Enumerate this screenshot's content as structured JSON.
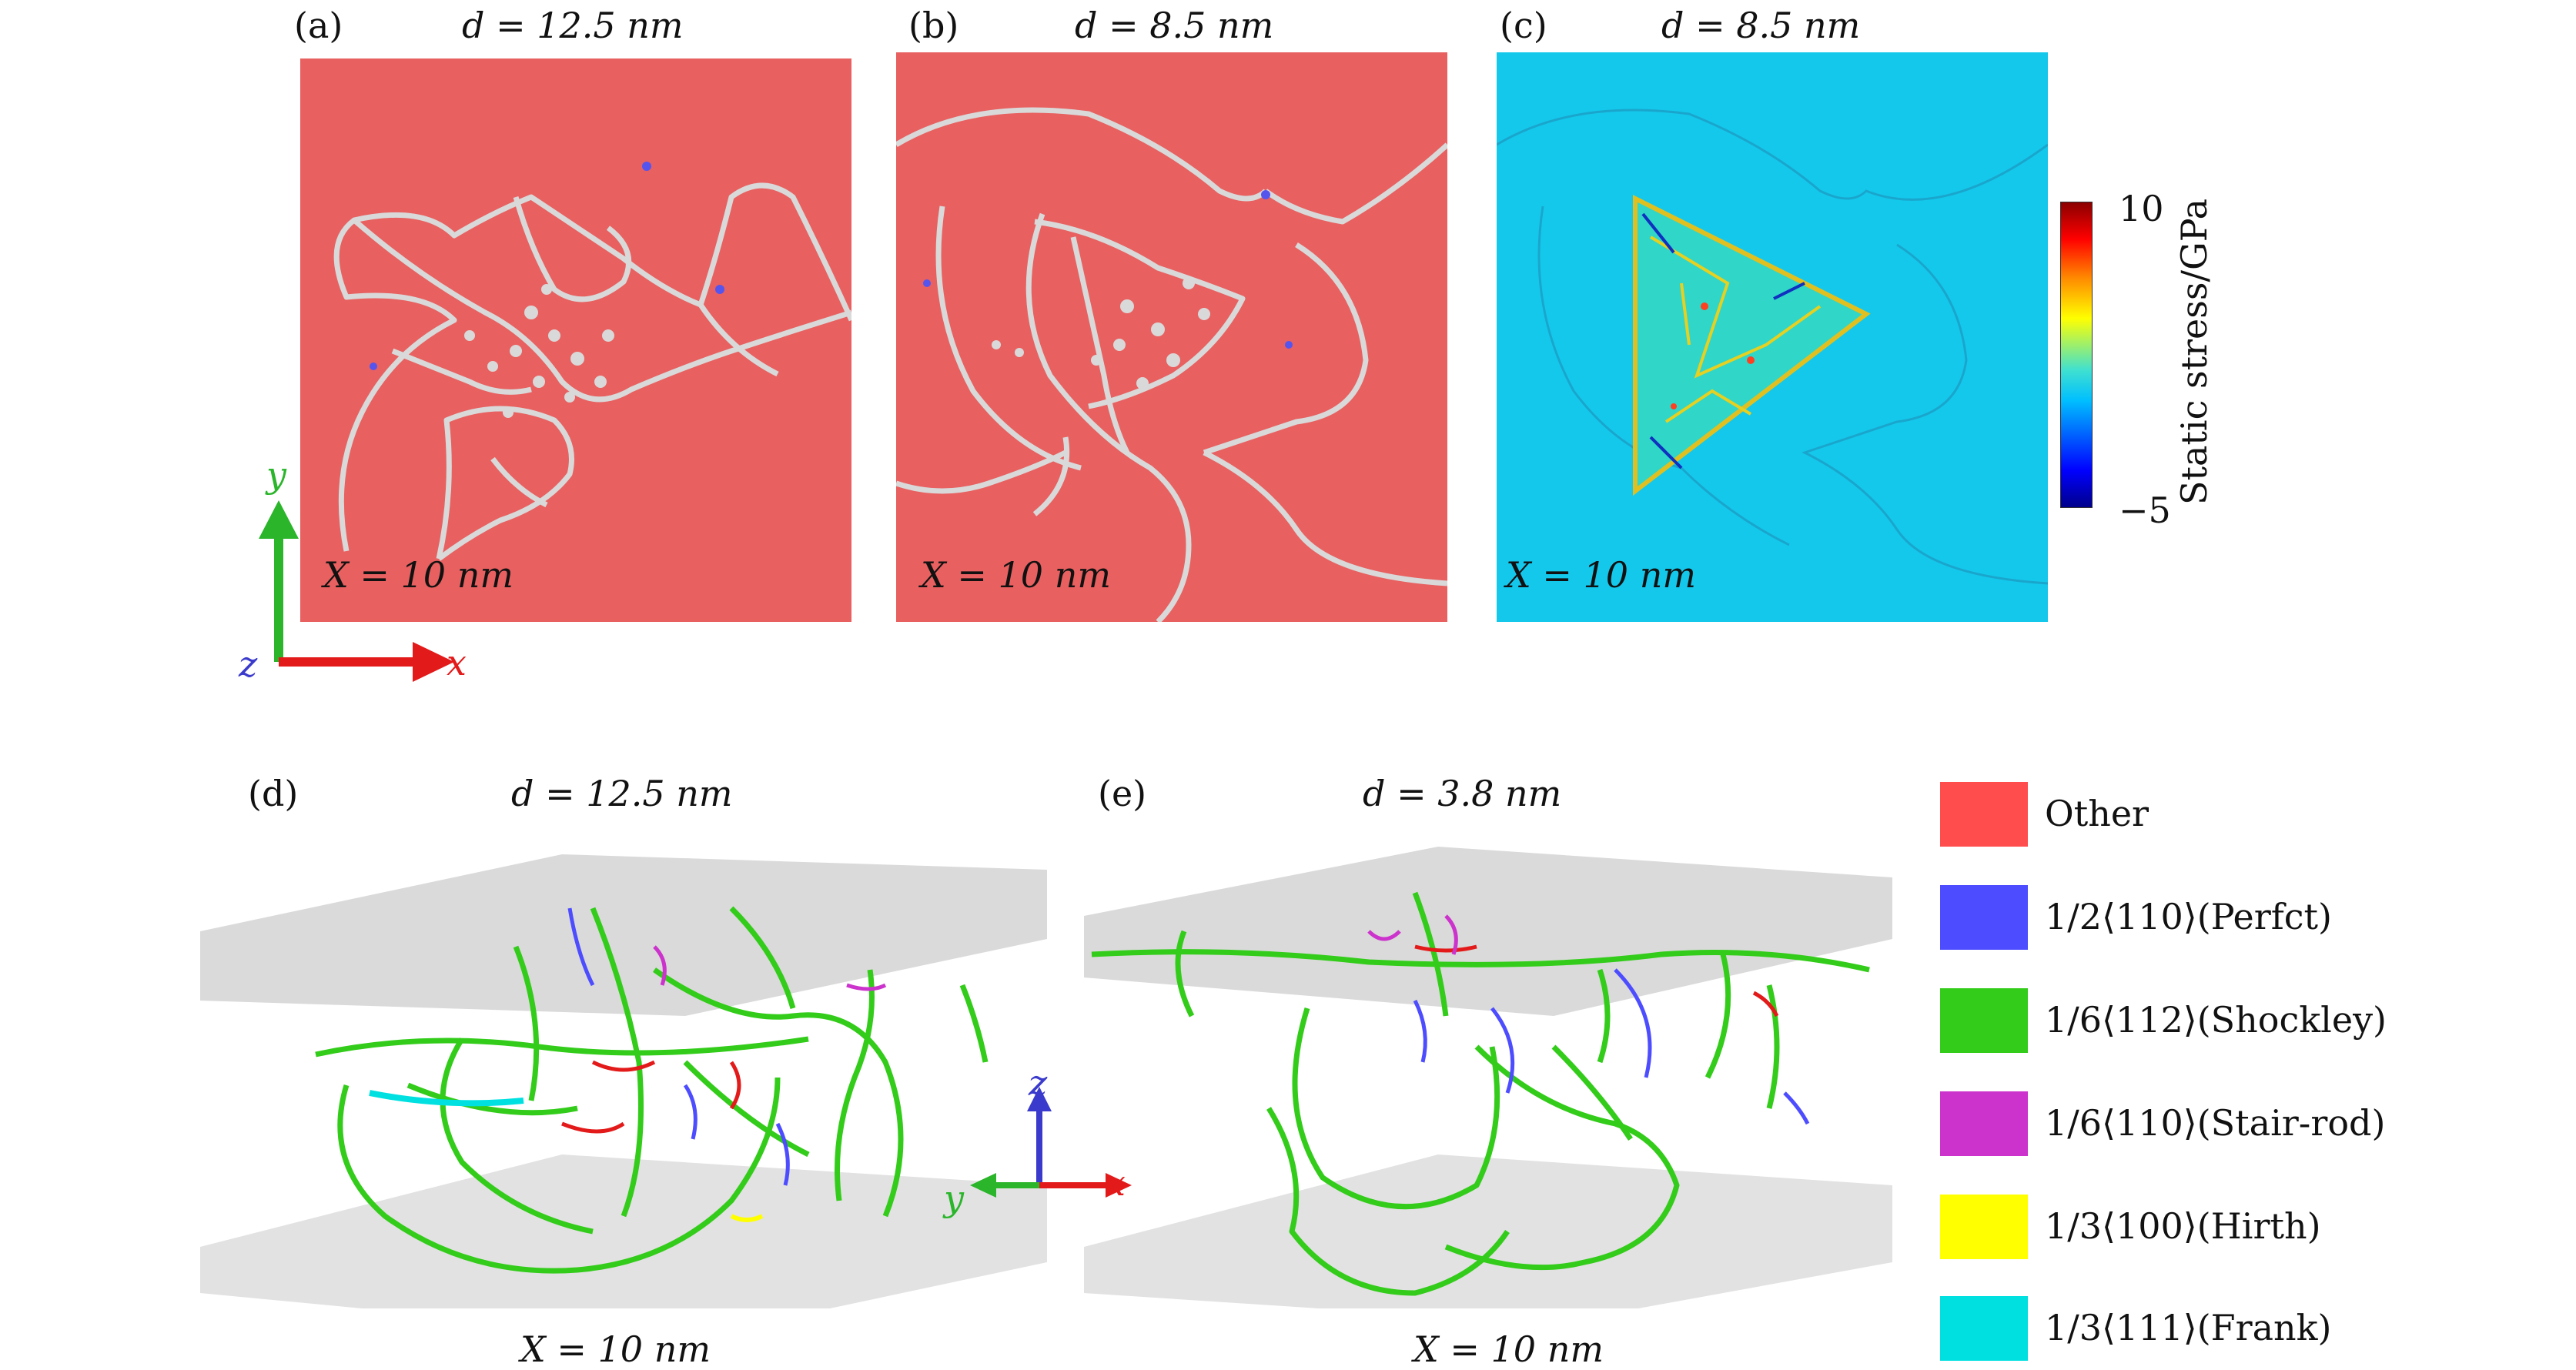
{
  "top": {
    "panels": [
      {
        "tag": "(a)",
        "d_label": "d = 12.5 nm",
        "x_label": "X = 10 nm",
        "bg": "#e86060"
      },
      {
        "tag": "(b)",
        "d_label": "d = 8.5 nm",
        "x_label": "X = 10 nm",
        "bg": "#e86060"
      },
      {
        "tag": "(c)",
        "d_label": "d = 8.5 nm",
        "x_label": "X = 10 nm",
        "bg": "#14c8ec"
      }
    ],
    "axes": {
      "y": "y",
      "z": "z",
      "x": "x"
    },
    "colorbar": {
      "label": "Static stress/GPa",
      "max": "10",
      "min": "−5"
    }
  },
  "bottom": {
    "panels": [
      {
        "tag": "(d)",
        "d_label": "d = 12.5 nm",
        "x_label": "X = 10 nm"
      },
      {
        "tag": "(e)",
        "d_label": "d = 3.8 nm",
        "x_label": "X = 10 nm"
      }
    ],
    "axes": {
      "z": "z",
      "y": "y",
      "x": "x"
    }
  },
  "legend": [
    {
      "label": "Other",
      "color": "#ff4d4d"
    },
    {
      "label": "1/2⟨110⟩(Perfct)",
      "color": "#4d4dff"
    },
    {
      "label": "1/6⟨112⟩(Shockley)",
      "color": "#33cc1a"
    },
    {
      "label": "1/6⟨110⟩(Stair-rod)",
      "color": "#cc33cc"
    },
    {
      "label": "1/3⟨100⟩(Hirth)",
      "color": "#ffff00"
    },
    {
      "label": "1/3⟨111⟩(Frank)",
      "color": "#00e0e0"
    }
  ]
}
